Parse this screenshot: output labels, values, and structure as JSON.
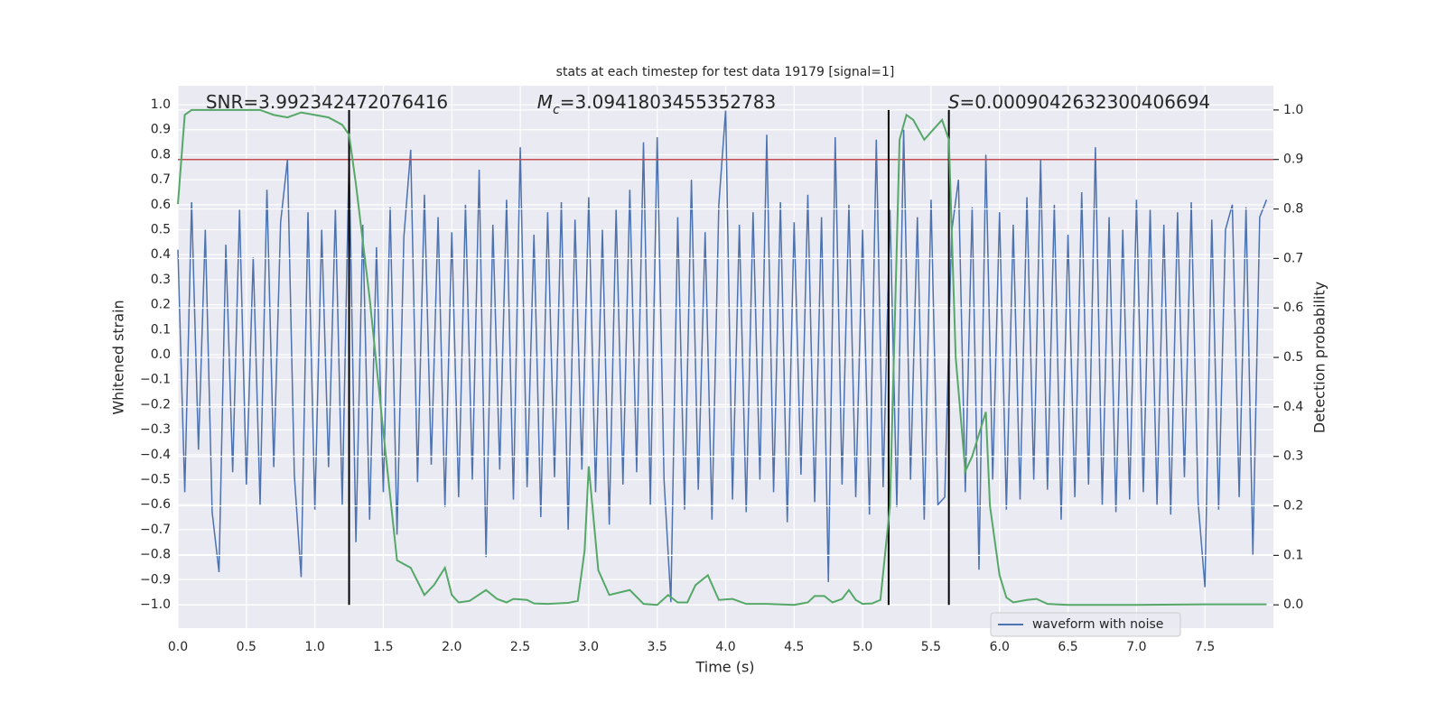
{
  "chart_data": {
    "type": "line",
    "title": "stats at each timestep for test data 19179 [signal=1]",
    "xlabel": "Time (s)",
    "ylabel": "Whitened strain",
    "y2label": "Detection probability",
    "xlim": [
      0,
      8
    ],
    "ylim": [
      -1.094,
      1.076
    ],
    "y2lim": [
      -0.047,
      1.049
    ],
    "grid": true,
    "legend": "lower right",
    "xticks": [
      {
        "value": 0,
        "label": "0.0"
      },
      {
        "value": 0.5,
        "label": "0.5"
      },
      {
        "value": 1,
        "label": "1.0"
      },
      {
        "value": 1.5,
        "label": "1.5"
      },
      {
        "value": 2,
        "label": "2.0"
      },
      {
        "value": 2.5,
        "label": "2.5"
      },
      {
        "value": 3,
        "label": "3.0"
      },
      {
        "value": 3.5,
        "label": "3.5"
      },
      {
        "value": 4,
        "label": "4.0"
      },
      {
        "value": 4.5,
        "label": "4.5"
      },
      {
        "value": 5,
        "label": "5.0"
      },
      {
        "value": 5.5,
        "label": "5.5"
      },
      {
        "value": 6,
        "label": "6.0"
      },
      {
        "value": 6.5,
        "label": "6.5"
      },
      {
        "value": 7,
        "label": "7.0"
      },
      {
        "value": 7.5,
        "label": "7.5"
      }
    ],
    "yticks": [
      {
        "value": -1,
        "label": "−1.0"
      },
      {
        "value": -0.9,
        "label": "−0.9"
      },
      {
        "value": -0.8,
        "label": "−0.8"
      },
      {
        "value": -0.7,
        "label": "−0.7"
      },
      {
        "value": -0.6,
        "label": "−0.6"
      },
      {
        "value": -0.5,
        "label": "−0.5"
      },
      {
        "value": -0.4,
        "label": "−0.4"
      },
      {
        "value": -0.3,
        "label": "−0.3"
      },
      {
        "value": -0.2,
        "label": "−0.2"
      },
      {
        "value": -0.1,
        "label": "−0.1"
      },
      {
        "value": 0,
        "label": "0.0"
      },
      {
        "value": 0.1,
        "label": "0.1"
      },
      {
        "value": 0.2,
        "label": "0.2"
      },
      {
        "value": 0.3,
        "label": "0.3"
      },
      {
        "value": 0.4,
        "label": "0.4"
      },
      {
        "value": 0.5,
        "label": "0.5"
      },
      {
        "value": 0.6,
        "label": "0.6"
      },
      {
        "value": 0.7,
        "label": "0.7"
      },
      {
        "value": 0.8,
        "label": "0.8"
      },
      {
        "value": 0.9,
        "label": "0.9"
      },
      {
        "value": 1,
        "label": "1.0"
      }
    ],
    "y2ticks": [
      {
        "value": 0,
        "label": "0.0"
      },
      {
        "value": 0.1,
        "label": "0.1"
      },
      {
        "value": 0.2,
        "label": "0.2"
      },
      {
        "value": 0.3,
        "label": "0.3"
      },
      {
        "value": 0.4,
        "label": "0.4"
      },
      {
        "value": 0.5,
        "label": "0.5"
      },
      {
        "value": 0.6,
        "label": "0.6"
      },
      {
        "value": 0.7,
        "label": "0.7"
      },
      {
        "value": 0.8,
        "label": "0.8"
      },
      {
        "value": 0.9,
        "label": "0.9"
      },
      {
        "value": 1,
        "label": "1.0"
      }
    ],
    "series": [
      {
        "name": "waveform with noise",
        "color": "#4c72b0",
        "x": [
          0,
          0.05,
          0.1,
          0.15,
          0.2,
          0.25,
          0.3,
          0.35,
          0.4,
          0.45,
          0.5,
          0.55,
          0.6,
          0.65,
          0.7,
          0.75,
          0.8,
          0.85,
          0.9,
          0.95,
          1,
          1.05,
          1.1,
          1.15,
          1.2,
          1.25,
          1.3,
          1.35,
          1.4,
          1.45,
          1.5,
          1.55,
          1.6,
          1.65,
          1.7,
          1.75,
          1.8,
          1.85,
          1.9,
          1.95,
          2,
          2.05,
          2.1,
          2.15,
          2.2,
          2.25,
          2.3,
          2.35,
          2.4,
          2.45,
          2.5,
          2.55,
          2.6,
          2.65,
          2.7,
          2.75,
          2.8,
          2.85,
          2.9,
          2.95,
          3,
          3.05,
          3.1,
          3.15,
          3.2,
          3.25,
          3.3,
          3.35,
          3.4,
          3.45,
          3.5,
          3.55,
          3.6,
          3.65,
          3.7,
          3.75,
          3.8,
          3.85,
          3.9,
          3.95,
          4,
          4.05,
          4.1,
          4.15,
          4.2,
          4.25,
          4.3,
          4.35,
          4.4,
          4.45,
          4.5,
          4.55,
          4.6,
          4.65,
          4.7,
          4.75,
          4.8,
          4.85,
          4.9,
          4.95,
          5,
          5.05,
          5.1,
          5.15,
          5.2,
          5.25,
          5.3,
          5.35,
          5.4,
          5.45,
          5.5,
          5.55,
          5.6,
          5.65,
          5.7,
          5.75,
          5.8,
          5.85,
          5.9,
          5.95,
          6,
          6.05,
          6.1,
          6.15,
          6.2,
          6.25,
          6.3,
          6.35,
          6.4,
          6.45,
          6.5,
          6.55,
          6.6,
          6.65,
          6.7,
          6.75,
          6.8,
          6.85,
          6.9,
          6.95,
          7,
          7.05,
          7.1,
          7.15,
          7.2,
          7.25,
          7.3,
          7.35,
          7.4,
          7.45,
          7.5,
          7.55,
          7.6,
          7.65,
          7.7,
          7.75,
          7.8,
          7.85,
          7.9,
          7.95
        ],
        "values": [
          0.42,
          -0.55,
          0.61,
          -0.38,
          0.5,
          -0.63,
          -0.87,
          0.44,
          -0.47,
          0.58,
          -0.52,
          0.39,
          -0.6,
          0.66,
          -0.45,
          0.53,
          0.78,
          -0.48,
          -0.89,
          0.57,
          -0.62,
          0.5,
          -0.45,
          0.58,
          -0.6,
          0.8,
          -0.75,
          0.52,
          -0.66,
          0.43,
          -0.55,
          0.59,
          -0.72,
          0.47,
          0.82,
          -0.51,
          0.64,
          -0.44,
          0.55,
          -0.61,
          0.49,
          -0.57,
          0.6,
          -0.5,
          0.74,
          -0.81,
          0.52,
          -0.46,
          0.62,
          -0.58,
          0.83,
          -0.53,
          0.48,
          -0.65,
          0.57,
          -0.49,
          0.61,
          -0.7,
          0.54,
          -0.46,
          0.63,
          -0.55,
          0.5,
          -0.68,
          0.58,
          -0.52,
          0.66,
          -0.47,
          0.85,
          -0.6,
          0.87,
          -0.5,
          -0.99,
          0.55,
          -0.62,
          0.7,
          -0.54,
          0.49,
          -0.66,
          0.6,
          0.98,
          -0.58,
          0.52,
          -0.63,
          0.57,
          -0.5,
          0.88,
          -0.55,
          0.61,
          -0.67,
          0.53,
          -0.48,
          0.64,
          -0.59,
          0.55,
          -0.91,
          0.87,
          -0.52,
          0.6,
          -0.57,
          0.5,
          -0.64,
          0.86,
          -0.53,
          0.58,
          -0.61,
          0.9,
          -0.5,
          0.55,
          -0.66,
          0.62,
          -0.6,
          -0.57,
          0.49,
          0.7,
          -0.55,
          0.59,
          -0.86,
          0.8,
          -0.5,
          0.57,
          -0.62,
          0.52,
          -0.58,
          0.63,
          -0.5,
          0.78,
          -0.54,
          0.6,
          -0.66,
          0.48,
          -0.57,
          0.65,
          -0.52,
          0.83,
          -0.6,
          0.55,
          -0.63,
          0.5,
          -0.58,
          0.62,
          -0.55,
          0.58,
          -0.6,
          0.52,
          -0.64,
          0.57,
          -0.49,
          0.61,
          -0.59,
          -0.93,
          0.54,
          -0.62,
          0.5,
          0.6,
          -0.57,
          0.59,
          -0.8,
          0.55,
          0.62
        ]
      },
      {
        "color": "#55a868",
        "axis": "y2",
        "x": [
          0,
          0.05,
          0.1,
          0.2,
          0.3,
          0.4,
          0.5,
          0.6,
          0.7,
          0.8,
          0.9,
          1.0,
          1.1,
          1.2,
          1.25,
          1.3,
          1.4,
          1.5,
          1.55,
          1.6,
          1.7,
          1.8,
          1.87,
          1.95,
          2.0,
          2.05,
          2.13,
          2.25,
          2.33,
          2.4,
          2.45,
          2.55,
          2.6,
          2.7,
          2.85,
          2.92,
          2.97,
          3.0,
          3.07,
          3.15,
          3.3,
          3.4,
          3.5,
          3.58,
          3.65,
          3.72,
          3.78,
          3.87,
          3.95,
          4.05,
          4.15,
          4.3,
          4.5,
          4.6,
          4.65,
          4.72,
          4.78,
          4.85,
          4.9,
          4.95,
          5.0,
          5.07,
          5.13,
          5.2,
          5.27,
          5.32,
          5.37,
          5.45,
          5.58,
          5.63,
          5.68,
          5.75,
          5.8,
          5.9,
          5.93,
          5.97,
          6.0,
          6.05,
          6.1,
          6.2,
          6.27,
          6.35,
          6.5,
          7.0,
          7.5,
          7.95
        ],
        "values": [
          0.81,
          0.99,
          1.0,
          1.0,
          1.0,
          1.0,
          1.0,
          1.0,
          0.99,
          0.985,
          0.995,
          0.99,
          0.985,
          0.97,
          0.95,
          0.85,
          0.62,
          0.35,
          0.22,
          0.09,
          0.075,
          0.02,
          0.04,
          0.075,
          0.02,
          0.005,
          0.008,
          0.03,
          0.012,
          0.005,
          0.012,
          0.01,
          0.003,
          0.002,
          0.004,
          0.008,
          0.11,
          0.28,
          0.07,
          0.02,
          0.03,
          0.002,
          0.0,
          0.02,
          0.005,
          0.005,
          0.04,
          0.06,
          0.01,
          0.012,
          0.002,
          0.002,
          0.0,
          0.005,
          0.018,
          0.018,
          0.005,
          0.012,
          0.03,
          0.01,
          0.002,
          0.003,
          0.01,
          0.2,
          0.94,
          0.99,
          0.98,
          0.94,
          0.98,
          0.94,
          0.5,
          0.27,
          0.3,
          0.39,
          0.2,
          0.12,
          0.06,
          0.015,
          0.005,
          0.01,
          0.012,
          0.002,
          0.0,
          0.0,
          0.001,
          0.001
        ]
      }
    ],
    "hlines": [
      {
        "value": 0.9,
        "axis": "y2",
        "color": "#c44e52"
      }
    ],
    "vlines": [
      {
        "x": 1.25,
        "ymin": 0,
        "ymax": 1,
        "axis": "y2",
        "color": "#000000"
      },
      {
        "x": 5.19,
        "ymin": 0,
        "ymax": 1,
        "axis": "y2",
        "color": "#000000"
      },
      {
        "x": 5.63,
        "ymin": 0,
        "ymax": 1,
        "axis": "y2",
        "color": "#000000"
      }
    ],
    "annotations": [
      [
        {
          "text": "SNR=3.992342472076416"
        }
      ],
      [
        {
          "text": "M",
          "italic": true
        },
        {
          "text": "c",
          "italic": true,
          "sub": true
        },
        {
          "text": "=3.0941803455352783"
        }
      ],
      [
        {
          "text": "S",
          "italic": true
        },
        {
          "text": "=0.0009042632300406694"
        }
      ]
    ]
  }
}
